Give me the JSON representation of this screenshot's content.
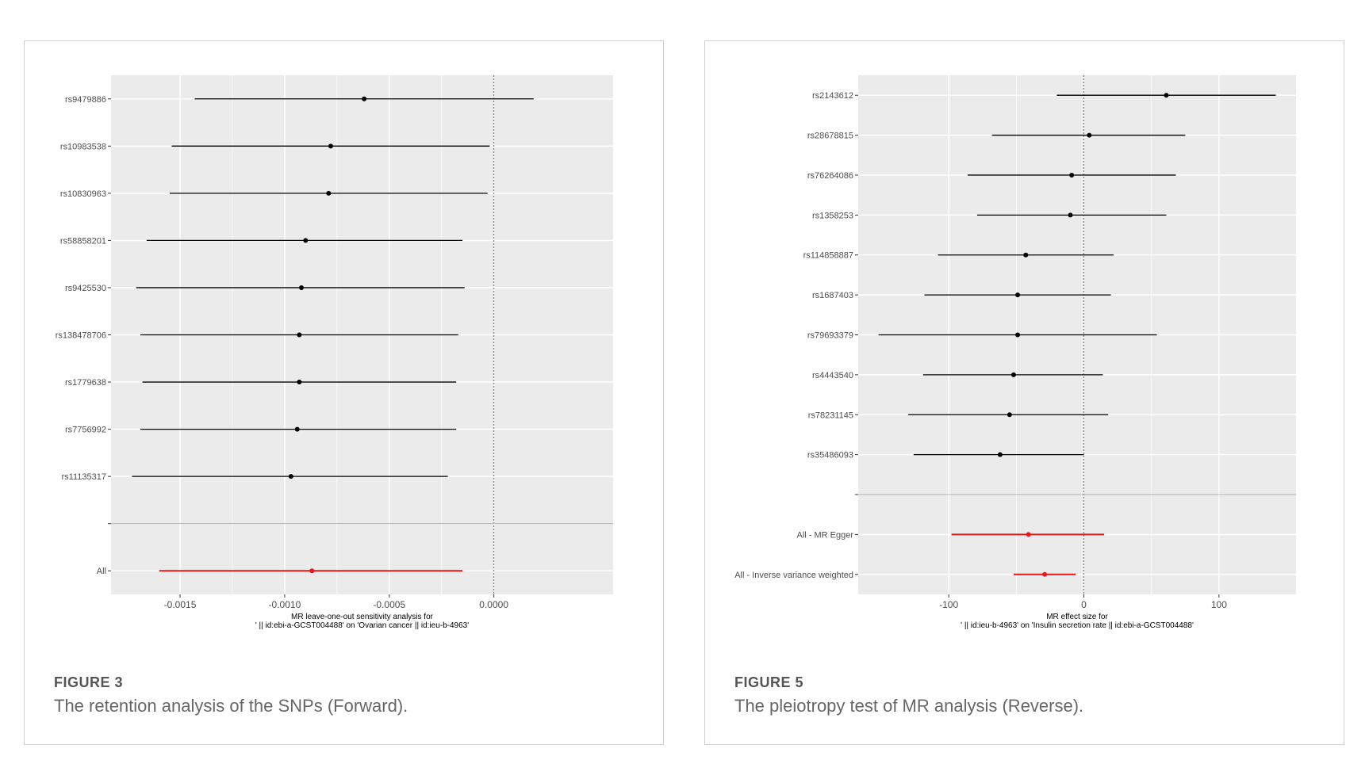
{
  "figures": [
    {
      "label": "FIGURE 3",
      "caption": "The retention analysis of the SNPs (Forward).",
      "chart_data": {
        "type": "forest",
        "xlabel": [
          "MR leave-one-out sensitivity analysis for",
          "' || id:ebi-a-GCST004488' on 'Ovarian cancer || id:ieu-b-4963'"
        ],
        "xlim": [
          -0.00183,
          0.00057
        ],
        "xticks": [
          -0.0015,
          -0.001,
          -0.0005,
          0.0
        ],
        "xtick_labels": [
          "-0.0015",
          "-0.0010",
          "-0.0005",
          "0.0000"
        ],
        "reference_line": 0,
        "grid": true,
        "rows": [
          {
            "label": "rs9479886",
            "estimate": -0.00062,
            "lower": -0.00143,
            "upper": 0.00019
          },
          {
            "label": "rs10983538",
            "estimate": -0.00078,
            "lower": -0.00154,
            "upper": -2e-05
          },
          {
            "label": "rs10830963",
            "estimate": -0.00079,
            "lower": -0.00155,
            "upper": -3e-05
          },
          {
            "label": "rs58858201",
            "estimate": -0.0009,
            "lower": -0.00166,
            "upper": -0.00015
          },
          {
            "label": "rs9425530",
            "estimate": -0.00092,
            "lower": -0.00171,
            "upper": -0.00014
          },
          {
            "label": "rs138478706",
            "estimate": -0.00093,
            "lower": -0.00169,
            "upper": -0.00017
          },
          {
            "label": "rs1779638",
            "estimate": -0.00093,
            "lower": -0.00168,
            "upper": -0.00018
          },
          {
            "label": "rs7756992",
            "estimate": -0.00094,
            "lower": -0.00169,
            "upper": -0.00018
          },
          {
            "label": "rs11135317",
            "estimate": -0.00097,
            "lower": -0.00173,
            "upper": -0.00022
          },
          {
            "label": "",
            "separator": true
          },
          {
            "label": "All",
            "estimate": -0.00087,
            "lower": -0.0016,
            "upper": -0.00015,
            "highlight": true
          }
        ],
        "colors": {
          "point": "#000000",
          "summary": "#e41a1c",
          "panel": "#ebebeb",
          "grid": "#ffffff"
        }
      }
    },
    {
      "label": "FIGURE 5",
      "caption": "The pleiotropy test of MR analysis (Reverse).",
      "chart_data": {
        "type": "forest",
        "xlabel": [
          "MR effect size for",
          "' || id:ieu-b-4963' on 'Insulin secretion rate || id:ebi-a-GCST004488'"
        ],
        "xlim": [
          -167,
          157
        ],
        "xticks": [
          -100,
          0,
          100
        ],
        "xtick_labels": [
          "-100",
          "0",
          "100"
        ],
        "reference_line": 0,
        "grid": true,
        "rows": [
          {
            "label": "rs2143612",
            "estimate": 61,
            "lower": -20,
            "upper": 142
          },
          {
            "label": "rs28678815",
            "estimate": 4,
            "lower": -68,
            "upper": 75
          },
          {
            "label": "rs76264086",
            "estimate": -9,
            "lower": -86,
            "upper": 68
          },
          {
            "label": "rs1358253",
            "estimate": -10,
            "lower": -79,
            "upper": 61
          },
          {
            "label": "rs114858887",
            "estimate": -43,
            "lower": -108,
            "upper": 22
          },
          {
            "label": "rs1687403",
            "estimate": -49,
            "lower": -118,
            "upper": 20
          },
          {
            "label": "rs79693379",
            "estimate": -49,
            "lower": -152,
            "upper": 54
          },
          {
            "label": "rs4443540",
            "estimate": -52,
            "lower": -119,
            "upper": 14
          },
          {
            "label": "rs78231145",
            "estimate": -55,
            "lower": -130,
            "upper": 18
          },
          {
            "label": "rs35486093",
            "estimate": -62,
            "lower": -126,
            "upper": 0
          },
          {
            "label": "",
            "separator": true
          },
          {
            "label": "All - MR Egger",
            "estimate": -41,
            "lower": -98,
            "upper": 15,
            "highlight": true
          },
          {
            "label": "All - Inverse variance weighted",
            "estimate": -29,
            "lower": -52,
            "upper": -6,
            "highlight": true
          }
        ],
        "colors": {
          "point": "#000000",
          "summary": "#e41a1c",
          "panel": "#ebebeb",
          "grid": "#ffffff"
        }
      }
    }
  ]
}
